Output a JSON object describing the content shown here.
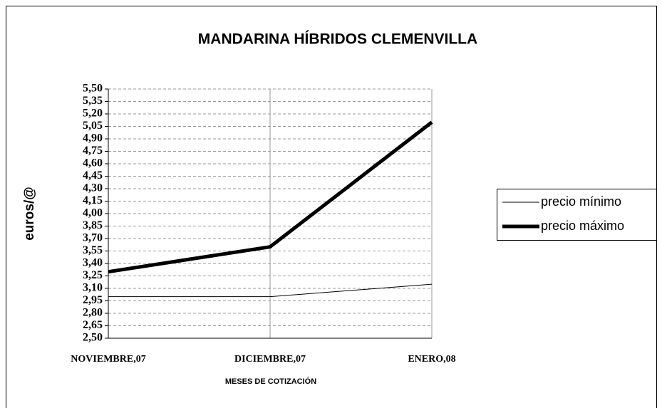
{
  "chart_data": {
    "type": "line",
    "title": "MANDARINA HÍBRIDOS CLEMENVILLA",
    "x_label": "MESES DE COTIZACIÓN",
    "y_label": "euros/@",
    "categories": [
      "NOVIEMBRE,07",
      "DICIEMBRE,07",
      "ENERO,08"
    ],
    "series": [
      {
        "name": "precio mínimo",
        "color": "#000000",
        "width": 1,
        "values": [
          3.0,
          3.0,
          3.15
        ]
      },
      {
        "name": "precio máximo",
        "color": "#000000",
        "width": 5,
        "values": [
          3.3,
          3.6,
          5.1
        ]
      }
    ],
    "ylim": [
      2.5,
      5.5
    ],
    "yticks": [
      {
        "value": 2.5,
        "label": "2,50"
      },
      {
        "value": 2.65,
        "label": "2,65"
      },
      {
        "value": 2.8,
        "label": "2,80"
      },
      {
        "value": 2.95,
        "label": "2,95"
      },
      {
        "value": 3.1,
        "label": "3,10"
      },
      {
        "value": 3.25,
        "label": "3,25"
      },
      {
        "value": 3.4,
        "label": "3,40"
      },
      {
        "value": 3.55,
        "label": "3,55"
      },
      {
        "value": 3.7,
        "label": "3,70"
      },
      {
        "value": 3.85,
        "label": "3,85"
      },
      {
        "value": 4.0,
        "label": "4,00"
      },
      {
        "value": 4.15,
        "label": "4,15"
      },
      {
        "value": 4.3,
        "label": "4,30"
      },
      {
        "value": 4.45,
        "label": "4,45"
      },
      {
        "value": 4.6,
        "label": "4,60"
      },
      {
        "value": 4.75,
        "label": "4,75"
      },
      {
        "value": 4.9,
        "label": "4,90"
      },
      {
        "value": 5.05,
        "label": "5,05"
      },
      {
        "value": 5.2,
        "label": "5,20"
      },
      {
        "value": 5.35,
        "label": "5,35"
      },
      {
        "value": 5.5,
        "label": "5,50"
      }
    ],
    "grid": true,
    "legend": "right"
  }
}
